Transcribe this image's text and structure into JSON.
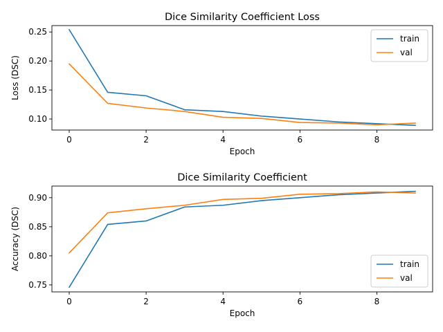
{
  "chart_data": [
    {
      "type": "line",
      "title": "Dice Similarity Coefficient Loss",
      "xlabel": "Epoch",
      "ylabel": "Loss (DSC)",
      "x": [
        0,
        1,
        2,
        3,
        4,
        5,
        6,
        7,
        8,
        9
      ],
      "xticks": [
        0,
        2,
        4,
        6,
        8
      ],
      "yticks": [
        0.1,
        0.15,
        0.2,
        0.25
      ],
      "ylim": [
        0.081,
        0.261
      ],
      "xlim": [
        -0.45,
        9.45
      ],
      "grid": false,
      "legend_position": "top-right",
      "series": [
        {
          "name": "train",
          "color": "#1f77b4",
          "values": [
            0.254,
            0.146,
            0.14,
            0.116,
            0.113,
            0.105,
            0.1,
            0.095,
            0.092,
            0.089
          ]
        },
        {
          "name": "val",
          "color": "#ff7f0e",
          "values": [
            0.195,
            0.127,
            0.119,
            0.113,
            0.103,
            0.101,
            0.094,
            0.093,
            0.09,
            0.093
          ]
        }
      ]
    },
    {
      "type": "line",
      "title": "Dice Similarity Coefficient",
      "xlabel": "Epoch",
      "ylabel": "Accuracy (DSC)",
      "x": [
        0,
        1,
        2,
        3,
        4,
        5,
        6,
        7,
        8,
        9
      ],
      "xticks": [
        0,
        2,
        4,
        6,
        8
      ],
      "yticks": [
        0.75,
        0.8,
        0.85,
        0.9
      ],
      "ylim": [
        0.738,
        0.92
      ],
      "xlim": [
        -0.45,
        9.45
      ],
      "grid": false,
      "legend_position": "bottom-right",
      "series": [
        {
          "name": "train",
          "color": "#1f77b4",
          "values": [
            0.746,
            0.854,
            0.86,
            0.884,
            0.887,
            0.895,
            0.9,
            0.905,
            0.908,
            0.911
          ]
        },
        {
          "name": "val",
          "color": "#ff7f0e",
          "values": [
            0.805,
            0.874,
            0.881,
            0.887,
            0.897,
            0.899,
            0.906,
            0.907,
            0.91,
            0.908
          ]
        }
      ]
    }
  ]
}
